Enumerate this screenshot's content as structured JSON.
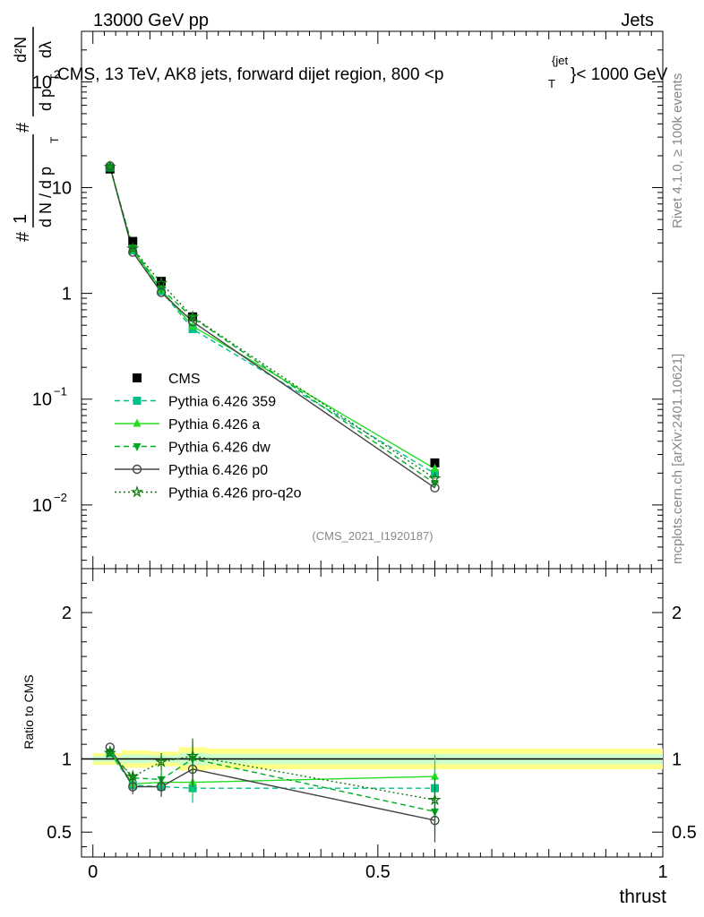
{
  "header": {
    "left": "13000 GeV pp",
    "right": "Jets"
  },
  "side_labels": {
    "rivet": "Rivet 4.1.0, ≥ 100k events",
    "mcplots": "mcplots.cern.ch [arXiv:2401.10621]"
  },
  "colors": {
    "cms": "#000000",
    "p359": "#00c08a",
    "pa": "#22dd22",
    "pdw": "#00aa22",
    "pp0": "#444444",
    "pq2o": "#117711",
    "band_outer": "#ffff88",
    "band_inner": "#ccffcc"
  },
  "chart_data": [
    {
      "type": "line",
      "title": "CMS, 13 TeV, AK8 jets, forward dijet region, 800 <p_T^{jet}< 1000 GeV",
      "title_parts": {
        "main": "CMS, 13 TeV, AK8 jets, forward dijet region, 800 <p",
        "sup": "{jet",
        "sub": "T",
        "end": "}< 1000 GeV"
      },
      "ylabel": "1/N dN/dλ",
      "ylabel_parts": {
        "hash1": "#",
        "one": "1",
        "dN": "d N / d p",
        "T1": "T",
        "hash2": "#",
        "dp": "d p",
        "T2": "T",
        "d2N": "d²N",
        "dl": "dλ"
      },
      "yscale": "log",
      "ylim": [
        0.0025,
        300
      ],
      "xlim": [
        -0.02,
        1.0
      ],
      "ytick_labels": [
        "10^-2",
        "10^-1",
        "1",
        "10",
        "10^2"
      ],
      "ytick_parts": [
        {
          "base": "10",
          "exp": "−2"
        },
        {
          "base": "10",
          "exp": "−1"
        },
        {
          "base": "1",
          "exp": ""
        },
        {
          "base": "10",
          "exp": ""
        },
        {
          "base": "10",
          "exp": "2"
        }
      ],
      "ytick_values": [
        0.01,
        0.1,
        1,
        10,
        100
      ],
      "watermark": "(CMS_2021_I1920187)",
      "legend_position": "center-left",
      "x": [
        0.03,
        0.07,
        0.12,
        0.175,
        0.6
      ],
      "series": [
        {
          "name": "CMS",
          "values": [
            15.0,
            3.1,
            1.3,
            0.6,
            0.025
          ],
          "errors": [
            0.5,
            0.1,
            0.05,
            0.03,
            0.002
          ],
          "style": "data"
        },
        {
          "name": "Pythia 6.426 359",
          "values": [
            15.5,
            2.55,
            1.05,
            0.46,
            0.0198
          ],
          "style": "dashed",
          "marker": "square"
        },
        {
          "name": "Pythia 6.426 a",
          "values": [
            15.6,
            2.6,
            1.08,
            0.49,
            0.022
          ],
          "style": "solid",
          "marker": "triangle-up"
        },
        {
          "name": "Pythia 6.426 dw",
          "values": [
            15.6,
            2.7,
            1.1,
            0.59,
            0.016
          ],
          "style": "dashed",
          "marker": "triangle-down"
        },
        {
          "name": "Pythia 6.426 p0",
          "values": [
            16.0,
            2.45,
            1.02,
            0.54,
            0.0145
          ],
          "style": "solid",
          "marker": "circle-open"
        },
        {
          "name": "Pythia 6.426 pro-q2o",
          "values": [
            15.7,
            2.65,
            1.25,
            0.6,
            0.0178
          ],
          "style": "dotted",
          "marker": "star-open"
        }
      ]
    },
    {
      "type": "line",
      "title": "",
      "ylabel": "Ratio to CMS",
      "xlabel": "thrust",
      "ylim": [
        0.33,
        2.3
      ],
      "xlim": [
        -0.02,
        1.0
      ],
      "ytick_labels": [
        "0.5",
        "1",
        "2"
      ],
      "ytick_values": [
        0.5,
        1,
        2
      ],
      "xtick_labels": [
        "0",
        "0.5",
        "1"
      ],
      "xtick_values": [
        0,
        0.5,
        1
      ],
      "x": [
        0.03,
        0.07,
        0.12,
        0.175,
        0.6
      ],
      "band_edges": [
        0.0,
        0.05,
        0.1,
        0.15,
        0.2,
        1.0
      ],
      "band_inner": [
        0.02,
        0.03,
        0.025,
        0.04,
        0.035
      ],
      "band_outer": [
        0.04,
        0.06,
        0.05,
        0.08,
        0.07
      ],
      "series": [
        {
          "name": "Pythia 6.426 359",
          "values": [
            1.04,
            0.82,
            0.81,
            0.8,
            0.8
          ],
          "errors": [
            0.01,
            0.04,
            0.06,
            0.1,
            0.15
          ],
          "style": "dashed",
          "marker": "square"
        },
        {
          "name": "Pythia 6.426 a",
          "values": [
            1.05,
            0.83,
            0.84,
            0.84,
            0.88
          ],
          "errors": [
            0.01,
            0.04,
            0.06,
            0.1,
            0.15
          ],
          "style": "solid",
          "marker": "triangle-up"
        },
        {
          "name": "Pythia 6.426 dw",
          "values": [
            1.05,
            0.87,
            0.86,
            1.0,
            0.64
          ],
          "errors": [
            0.01,
            0.04,
            0.06,
            0.12,
            0.15
          ],
          "style": "dashed",
          "marker": "triangle-down"
        },
        {
          "name": "Pythia 6.426 p0",
          "values": [
            1.08,
            0.81,
            0.81,
            0.93,
            0.58
          ],
          "errors": [
            0.01,
            0.05,
            0.07,
            0.12,
            0.15
          ],
          "style": "solid",
          "marker": "circle-open"
        },
        {
          "name": "Pythia 6.426 pro-q2o",
          "values": [
            1.04,
            0.88,
            0.98,
            1.02,
            0.72
          ],
          "errors": [
            0.01,
            0.04,
            0.06,
            0.12,
            0.15
          ],
          "style": "dotted",
          "marker": "star-open"
        }
      ]
    }
  ]
}
